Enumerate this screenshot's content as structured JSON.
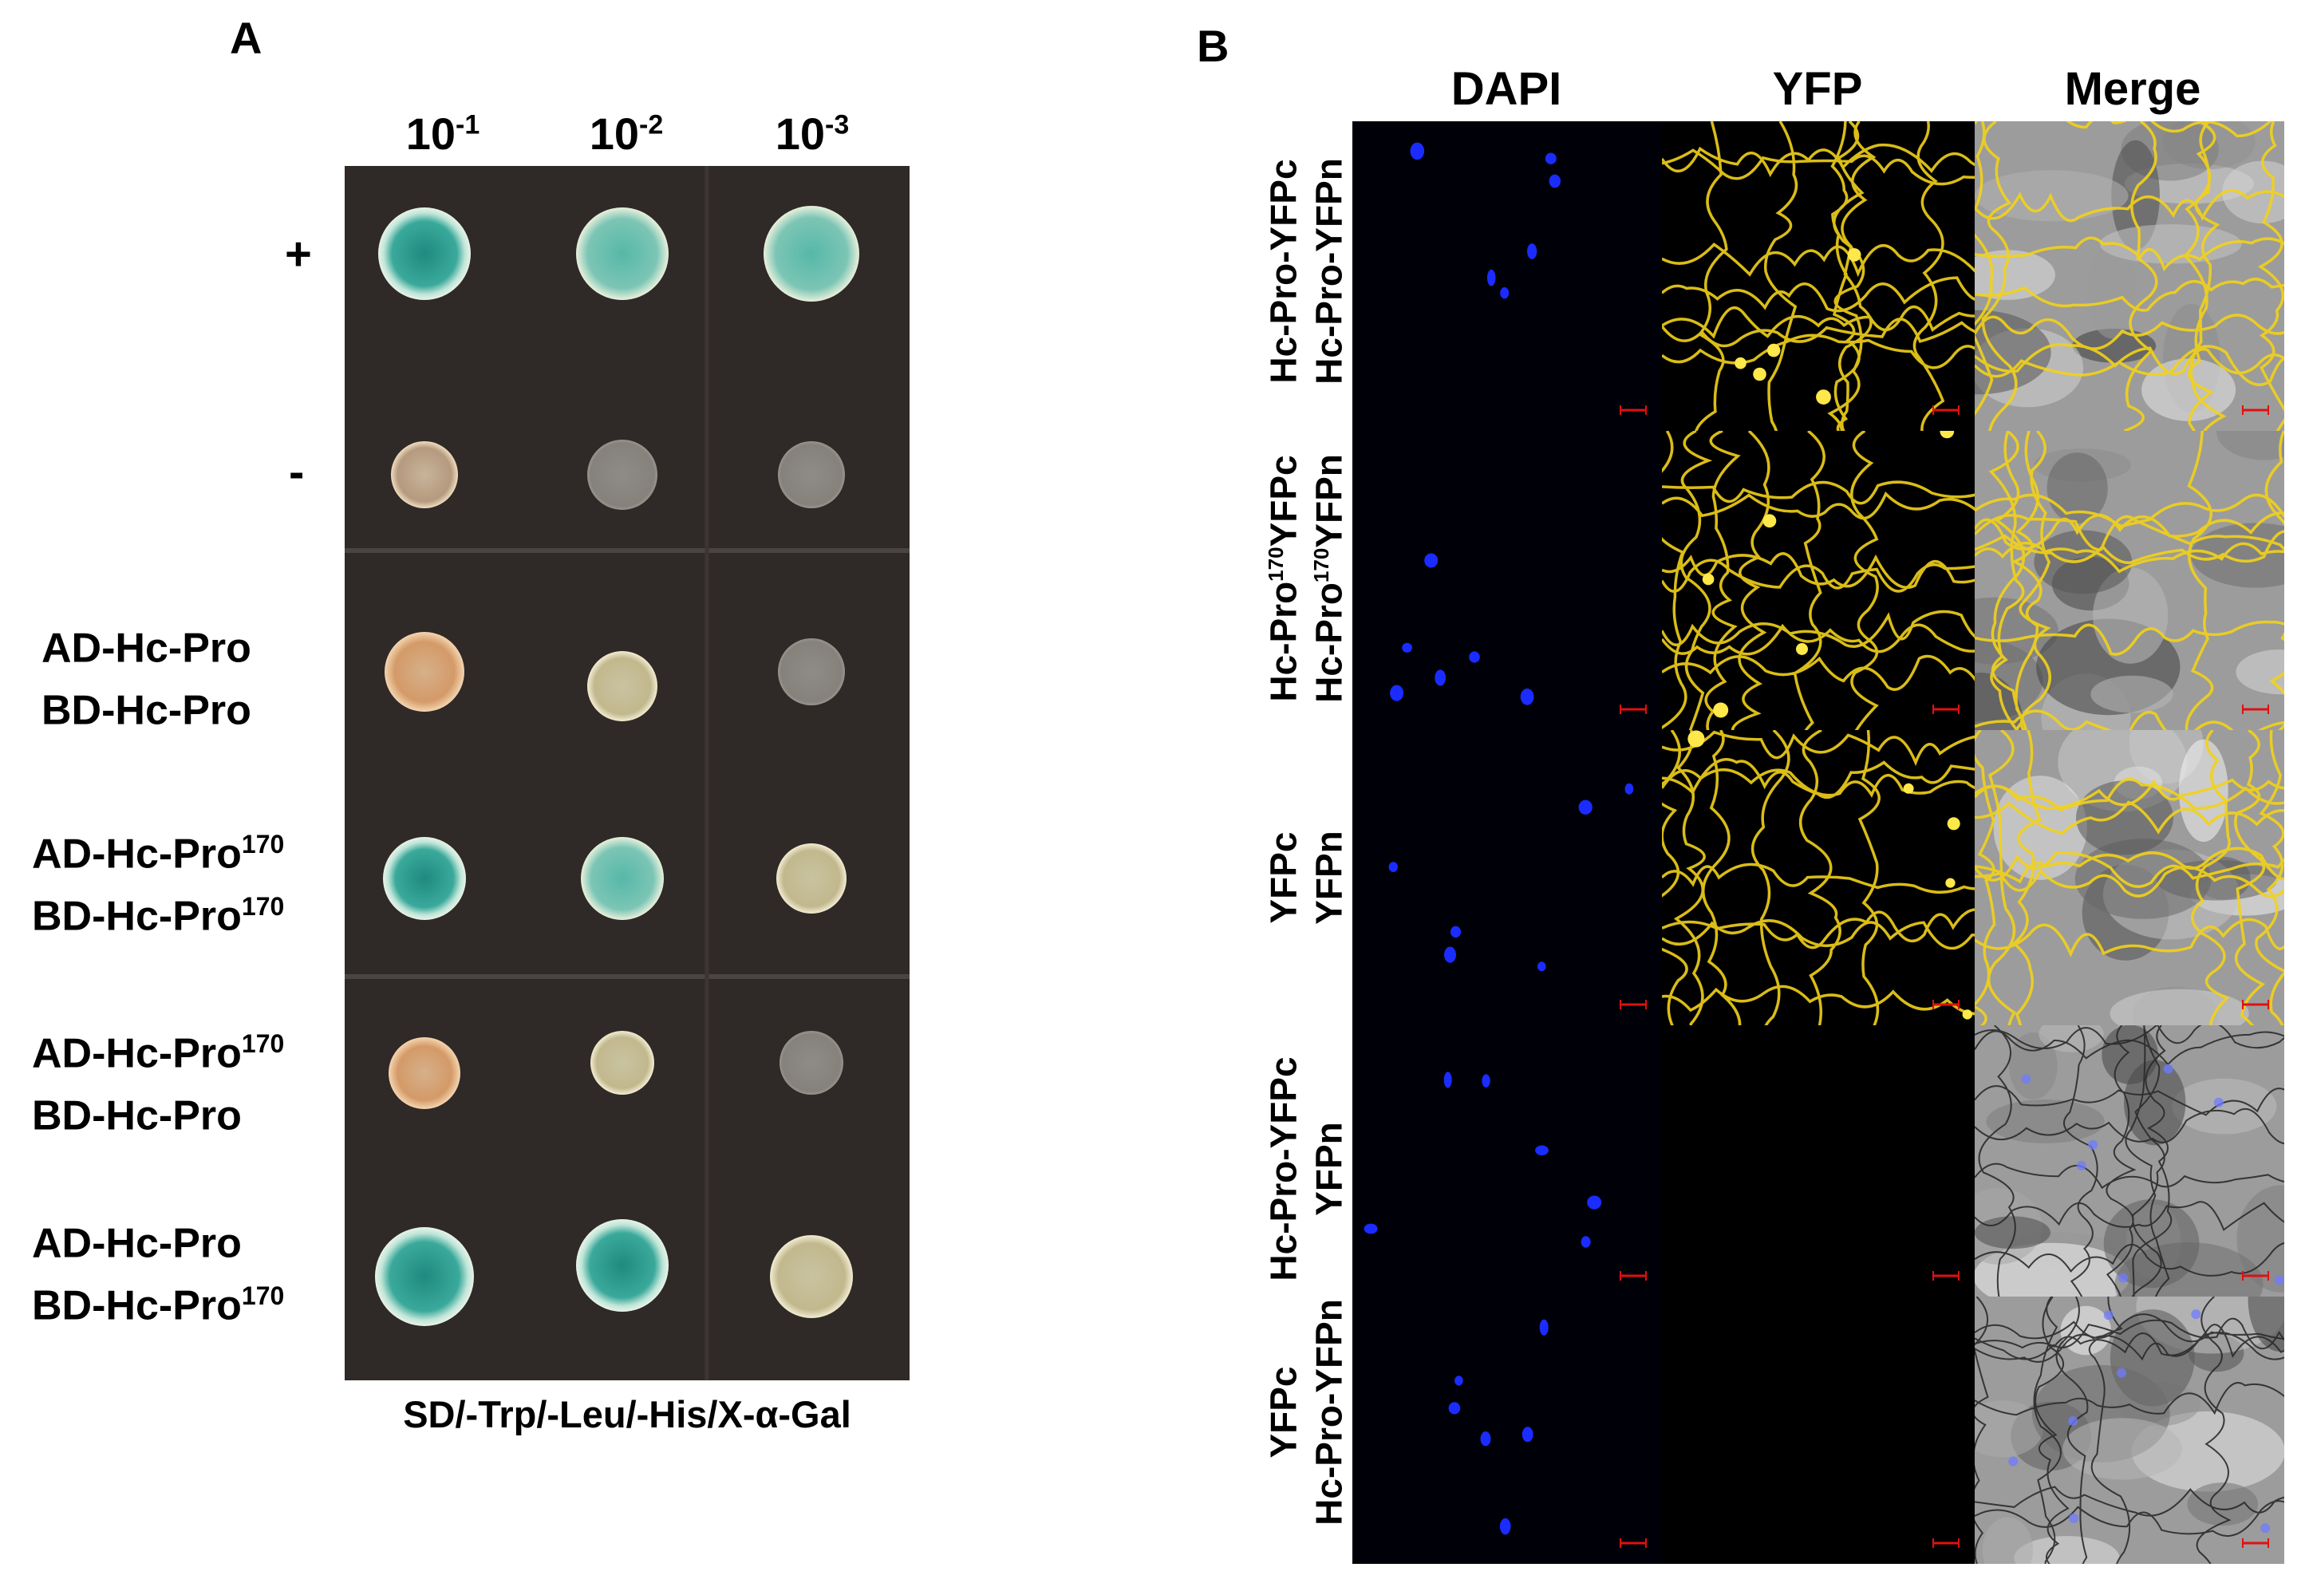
{
  "panel_a": {
    "letter": "A",
    "dilutions": [
      {
        "base": "10",
        "exp": "-1"
      },
      {
        "base": "10",
        "exp": "-2"
      },
      {
        "base": "10",
        "exp": "-3"
      }
    ],
    "rows": [
      {
        "line1": "+",
        "sign": true
      },
      {
        "line1": "-",
        "sign": true
      },
      {
        "line1": "AD-Hc-Pro",
        "line1_sup": "",
        "line2": "BD-Hc-Pro",
        "line2_sup": ""
      },
      {
        "line1": "AD-Hc-Pro",
        "line1_sup": "170",
        "line2": "BD-Hc-Pro",
        "line2_sup": "170"
      },
      {
        "line1": "AD-Hc-Pro",
        "line1_sup": "170",
        "line2": "BD-Hc-Pro",
        "line2_sup": ""
      },
      {
        "line1": "AD-Hc-Pro",
        "line1_sup": "",
        "line2": "BD-Hc-Pro",
        "line2_sup": "170"
      }
    ],
    "medium": "SD/-Trp/-Leu/-His/X-α-Gal",
    "colony_colors": {
      "blue": "#2f9a8e",
      "blue_light": "#7cc5b5",
      "tan": "#c7a98a",
      "grey": "#8e8b86",
      "orange": "#d9a070"
    }
  },
  "panel_b": {
    "letter": "B",
    "columns": [
      "DAPI",
      "YFP",
      "Merge"
    ],
    "rows": [
      {
        "line1": "Hc-Pro-YFPc",
        "line1_sup": "",
        "line1_tail": "",
        "line2": "Hc-Pro-YFPn",
        "line2_sup": "",
        "line2_tail": ""
      },
      {
        "line1": "Hc-Pro",
        "line1_sup": "170",
        "line1_tail": "YFPc",
        "line2": "Hc-Pro",
        "line2_sup": "170",
        "line2_tail": "YFPn"
      },
      {
        "line1": "YFPc",
        "line1_sup": "",
        "line1_tail": "",
        "line2": "YFPn",
        "line2_sup": "",
        "line2_tail": ""
      },
      {
        "line1": "Hc-Pro-YFPc",
        "line1_sup": "",
        "line1_tail": "",
        "line2": "YFPn",
        "line2_sup": "",
        "line2_tail": ""
      },
      {
        "line1": "YFPc",
        "line1_sup": "",
        "line1_tail": "",
        "line2": "Hc-Pro-YFPn",
        "line2_sup": "",
        "line2_tail": ""
      }
    ],
    "colors": {
      "dapi_bg": "#000008",
      "dapi_nucleus": "#1a2cff",
      "yfp_signal": "#f2d21a",
      "merge_bg": "#9c9c9c",
      "scale_bar": "#e01010"
    }
  }
}
